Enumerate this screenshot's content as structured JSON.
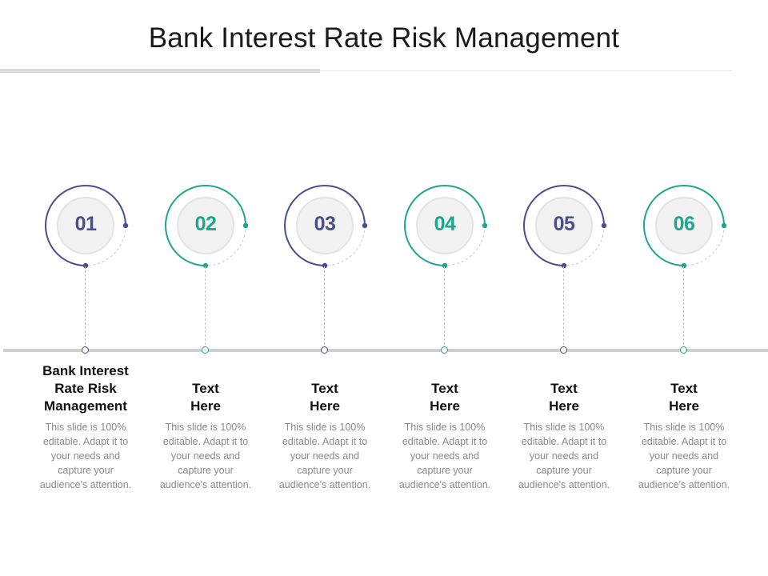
{
  "title": "Bank Interest Rate Risk Management",
  "colors": {
    "navy": "#4a4e8c",
    "teal": "#1fa58e",
    "ring_bg": "#f2f2f2",
    "ring_border": "#e3e3e3"
  },
  "steps": [
    {
      "number": "01",
      "heading_lines": [
        "Bank Interest",
        "Rate Risk",
        "Management"
      ],
      "body_lines": [
        "This slide is 100%",
        "editable. Adapt it to",
        "your needs and",
        "capture your",
        "audience's attention."
      ],
      "color": "navy"
    },
    {
      "number": "02",
      "heading_lines": [
        "Text",
        "Here"
      ],
      "body_lines": [
        "This slide is 100%",
        "editable. Adapt it to",
        "your needs and",
        "capture your",
        "audience's attention."
      ],
      "color": "teal"
    },
    {
      "number": "03",
      "heading_lines": [
        "Text",
        "Here"
      ],
      "body_lines": [
        "This slide is 100%",
        "editable. Adapt it to",
        "your needs and",
        "capture your",
        "audience's attention."
      ],
      "color": "navy"
    },
    {
      "number": "04",
      "heading_lines": [
        "Text",
        "Here"
      ],
      "body_lines": [
        "This slide is 100%",
        "editable. Adapt it to",
        "your needs and",
        "capture your",
        "audience's attention."
      ],
      "color": "teal"
    },
    {
      "number": "05",
      "heading_lines": [
        "Text",
        "Here"
      ],
      "body_lines": [
        "This slide is 100%",
        "editable. Adapt it to",
        "your needs and",
        "capture your",
        "audience's attention."
      ],
      "color": "navy"
    },
    {
      "number": "06",
      "heading_lines": [
        "Text",
        "Here"
      ],
      "body_lines": [
        "This slide is 100%",
        "editable. Adapt it to",
        "your needs and",
        "capture your",
        "audience's attention."
      ],
      "color": "teal"
    }
  ]
}
